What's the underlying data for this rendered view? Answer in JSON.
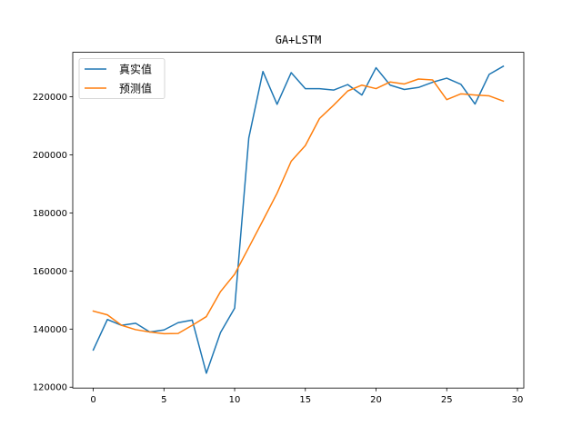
{
  "chart_data": {
    "type": "line",
    "title": "GA+LSTM",
    "xlabel": "",
    "ylabel": "",
    "xlim": [
      -1.45,
      30.45
    ],
    "ylim": [
      119700,
      235300
    ],
    "xticks": [
      0,
      5,
      10,
      15,
      20,
      25,
      30
    ],
    "yticks": [
      120000,
      140000,
      160000,
      180000,
      200000,
      220000
    ],
    "x": [
      0,
      1,
      2,
      3,
      4,
      5,
      6,
      7,
      8,
      9,
      10,
      11,
      12,
      13,
      14,
      15,
      16,
      17,
      18,
      19,
      20,
      21,
      22,
      23,
      24,
      25,
      26,
      27,
      28,
      29
    ],
    "series": [
      {
        "name": "真实值",
        "color": "#1f77b4",
        "values": [
          132800,
          143300,
          141300,
          142000,
          139000,
          139700,
          142200,
          143100,
          124800,
          138800,
          147200,
          205800,
          228700,
          217400,
          228300,
          222800,
          222800,
          222300,
          224200,
          220600,
          230000,
          224000,
          222500,
          223200,
          225000,
          226400,
          224300,
          217500,
          227700,
          230500
        ]
      },
      {
        "name": "预测值",
        "color": "#ff7f0e",
        "values": [
          146200,
          144900,
          141300,
          139800,
          139000,
          138400,
          138500,
          141300,
          144300,
          152900,
          158900,
          168100,
          177400,
          186800,
          197800,
          203200,
          212500,
          217100,
          222000,
          224000,
          222800,
          225100,
          224400,
          226100,
          225800,
          219000,
          221000,
          220600,
          220300,
          218500
        ]
      }
    ],
    "legend": "upper-left",
    "grid": false
  }
}
